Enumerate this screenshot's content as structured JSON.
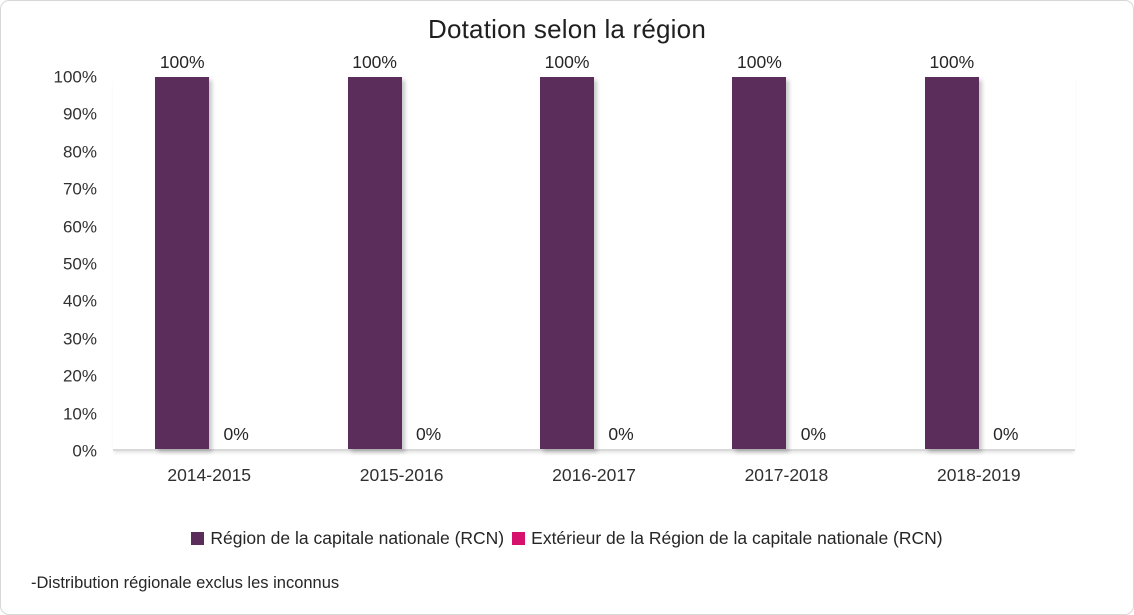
{
  "chart_data": {
    "type": "bar",
    "title": "Dotation selon la région",
    "categories": [
      "2014-2015",
      "2015-2016",
      "2016-2017",
      "2017-2018",
      "2018-2019"
    ],
    "series": [
      {
        "name": "Région de la capitale nationale (RCN)",
        "color": "#5B2D5B",
        "values": [
          100,
          100,
          100,
          100,
          100
        ]
      },
      {
        "name": "Extérieur de la Région de la capitale nationale (RCN)",
        "color": "#D5106D",
        "values": [
          0,
          0,
          0,
          0,
          0
        ]
      }
    ],
    "value_suffix": "%",
    "y_ticks": [
      "100%",
      "90%",
      "80%",
      "70%",
      "60%",
      "50%",
      "40%",
      "30%",
      "20%",
      "10%",
      "0%"
    ],
    "ylim": [
      0,
      100
    ],
    "grid": false,
    "legend_position": "bottom",
    "data_labels": true
  },
  "footnote": "-Distribution régionale exclus les inconnus"
}
